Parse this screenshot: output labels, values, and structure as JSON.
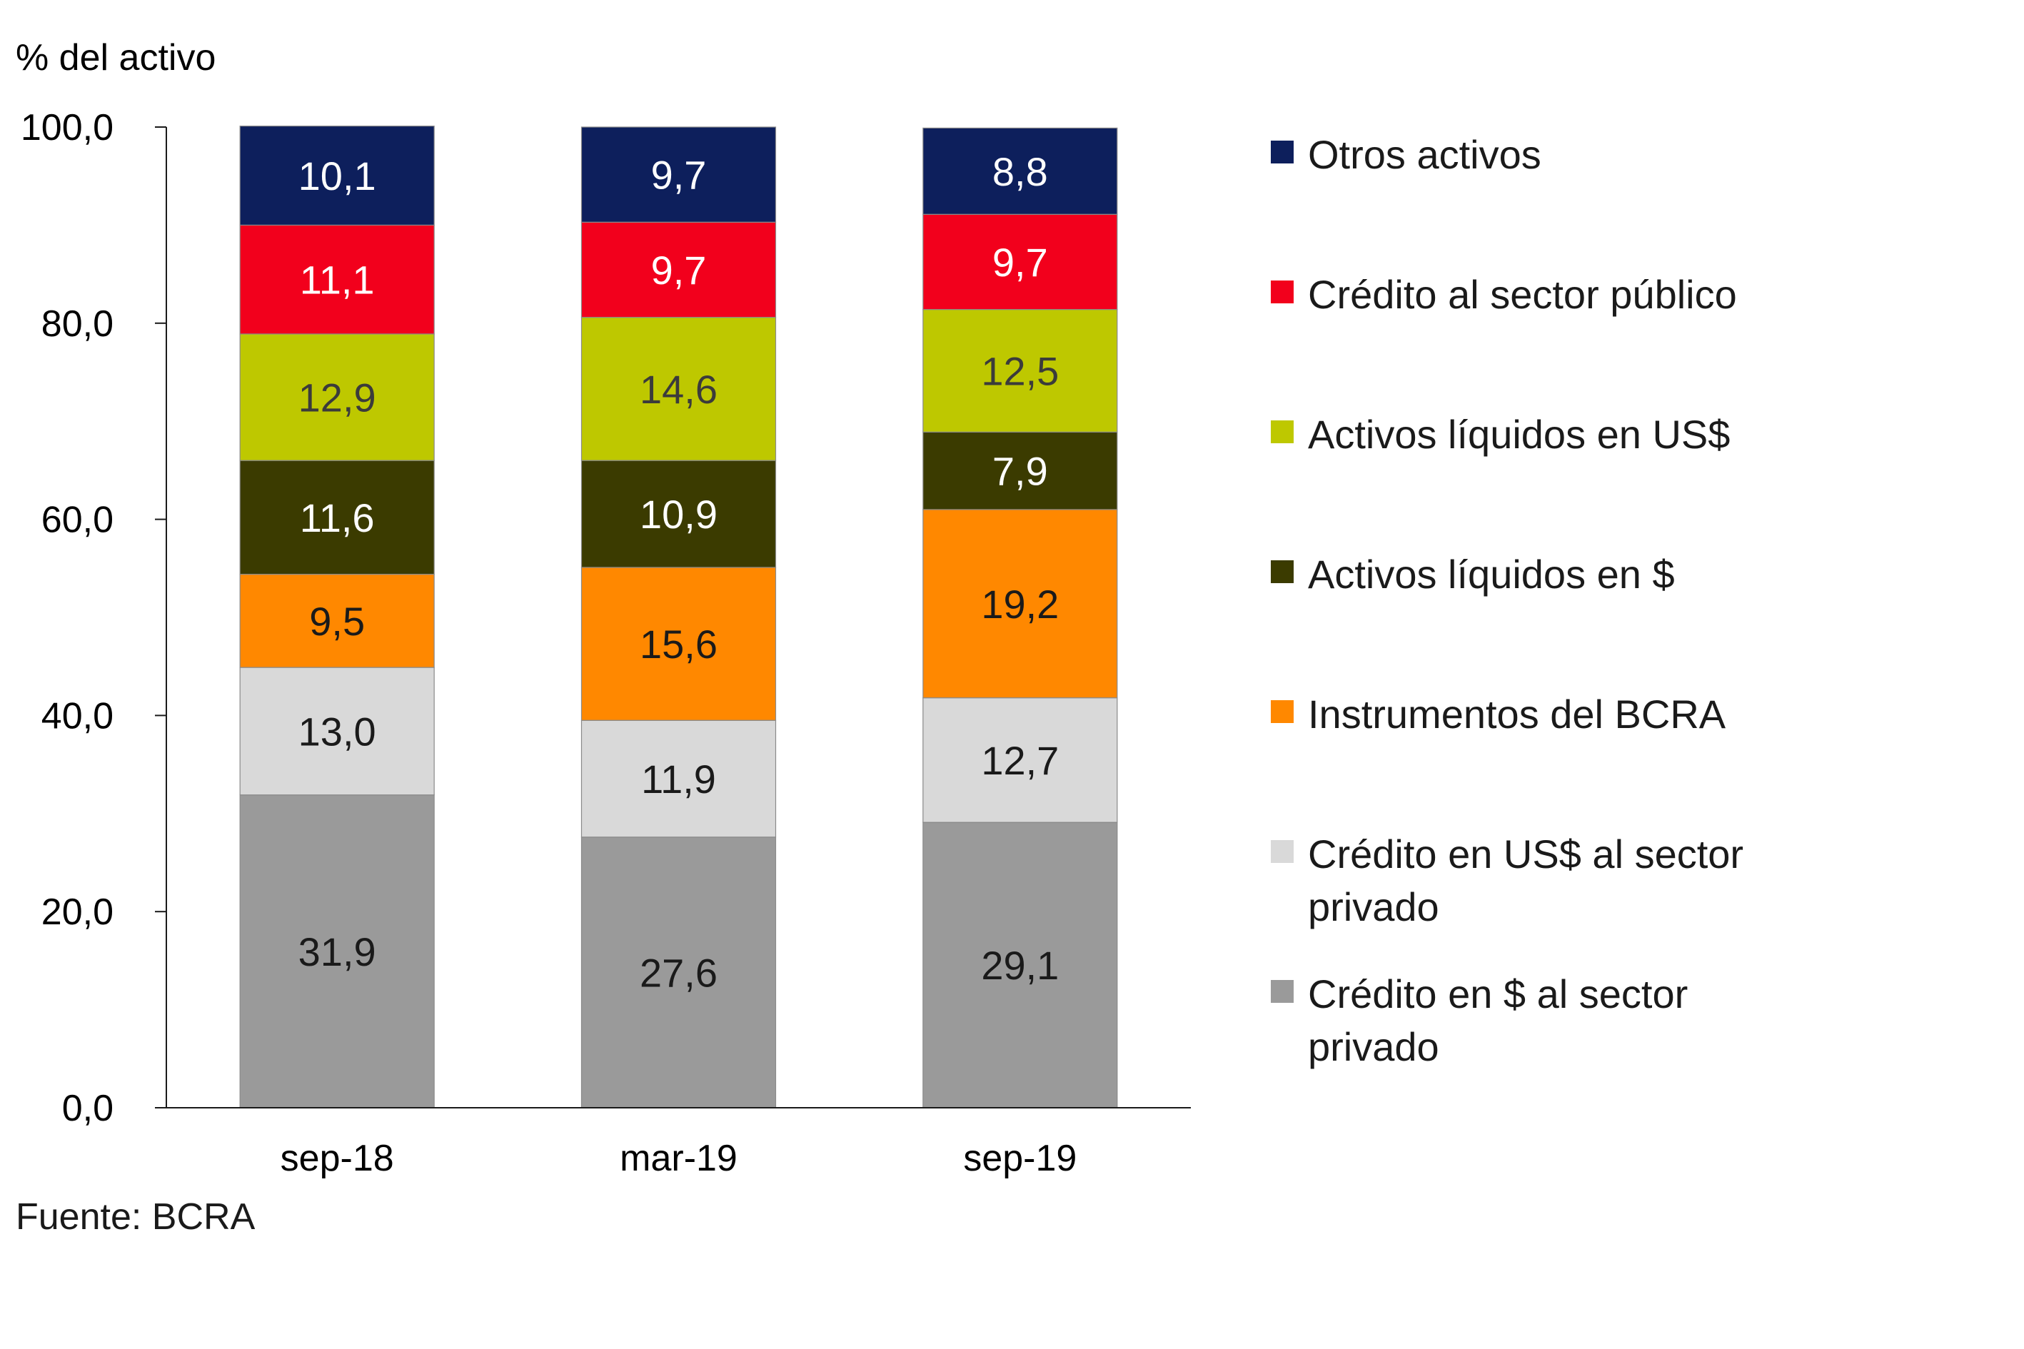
{
  "chart_data": {
    "type": "bar",
    "stacked": true,
    "ylabel": "% del activo",
    "ylim": [
      0,
      100
    ],
    "yticks": [
      "0,0",
      "20,0",
      "40,0",
      "60,0",
      "80,0",
      "100,0"
    ],
    "categories": [
      "sep-18",
      "mar-19",
      "sep-19"
    ],
    "series": [
      {
        "name": "Crédito en $ al sector privado",
        "color": "#9a9a9a",
        "label_color": "#1a1a1a",
        "values": [
          31.9,
          27.6,
          29.1
        ],
        "labels": [
          "31,9",
          "27,6",
          "29,1"
        ]
      },
      {
        "name": "Crédito en US$ al sector privado",
        "color": "#d9d9d9",
        "label_color": "#1a1a1a",
        "values": [
          13.0,
          11.9,
          12.7
        ],
        "labels": [
          "13,0",
          "11,9",
          "12,7"
        ]
      },
      {
        "name": "Instrumentos del BCRA",
        "color": "#ff8800",
        "label_color": "#1a1a1a",
        "values": [
          9.5,
          15.6,
          19.2
        ],
        "labels": [
          "9,5",
          "15,6",
          "19,2"
        ]
      },
      {
        "name": "Activos líquidos en $",
        "color": "#3b3b00",
        "label_color": "#ffffff",
        "values": [
          11.6,
          10.9,
          7.9
        ],
        "labels": [
          "11,6",
          "10,9",
          "7,9"
        ]
      },
      {
        "name": "Activos líquidos en US$",
        "color": "#bec800",
        "label_color": "#3b3b3b",
        "values": [
          12.9,
          14.6,
          12.5
        ],
        "labels": [
          "12,9",
          "14,6",
          "12,5"
        ]
      },
      {
        "name": "Crédito al sector público",
        "color": "#f2001c",
        "label_color": "#ffffff",
        "values": [
          11.1,
          9.7,
          9.7
        ],
        "labels": [
          "11,1",
          "9,7",
          "9,7"
        ]
      },
      {
        "name": "Otros activos",
        "color": "#0d1f5c",
        "label_color": "#ffffff",
        "values": [
          10.1,
          9.7,
          8.8
        ],
        "labels": [
          "10,1",
          "9,7",
          "8,8"
        ]
      }
    ],
    "legend_position": "right",
    "grid": false
  },
  "legend": [
    {
      "label": "Otros activos",
      "color": "#0d1f5c"
    },
    {
      "label": "Crédito al sector público",
      "color": "#f2001c"
    },
    {
      "label": "Activos líquidos en US$",
      "color": "#bec800"
    },
    {
      "label": "Activos líquidos en $",
      "color": "#3b3b00"
    },
    {
      "label": "Instrumentos del BCRA",
      "color": "#ff8800"
    },
    {
      "label": "Crédito en US$ al sector privado",
      "color": "#d9d9d9"
    },
    {
      "label": "Crédito en $ al sector privado",
      "color": "#9a9a9a"
    }
  ],
  "source": "Fuente: BCRA"
}
